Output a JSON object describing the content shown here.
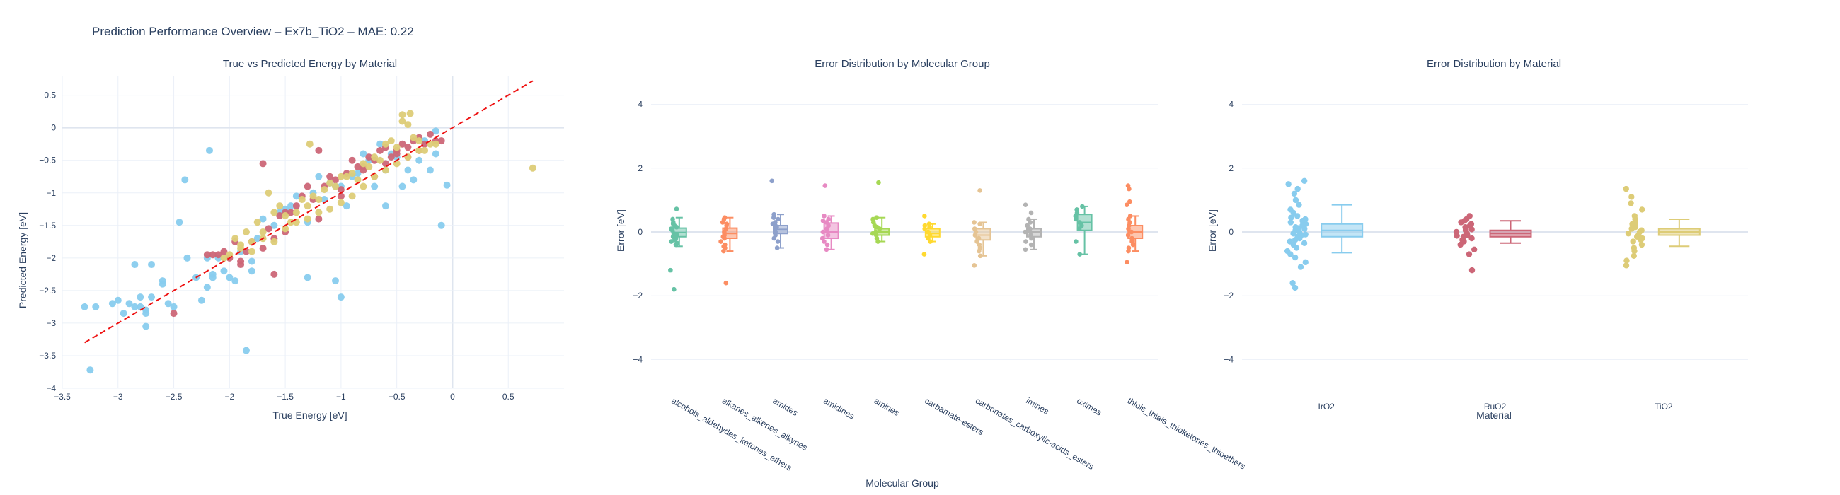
{
  "figure": {
    "title": "Prediction Performance Overview – Ex7b_TiO2 – MAE: 0.22"
  },
  "colors": {
    "IrO2": "#88ccee",
    "RuO2": "#cc6677",
    "TiO2": "#ddcc77",
    "ideal_line": "#ee1111",
    "groups": [
      "#66c2a5",
      "#fc8d62",
      "#8da0cb",
      "#e78ac3",
      "#a6d854",
      "#ffd92f",
      "#e5c494",
      "#b3b3b3",
      "#66c2a5",
      "#fc8d62"
    ]
  },
  "chart_data": [
    {
      "type": "scatter",
      "title": "True vs Predicted Energy by Material",
      "xlabel": "True Energy [eV]",
      "ylabel": "Predicted Energy [eV]",
      "xlim": [
        -3.5,
        1.0
      ],
      "ylim": [
        -4.0,
        0.8
      ],
      "x_ticks": [
        -3.5,
        -3,
        -2.5,
        -2,
        -1.5,
        -1,
        -0.5,
        0,
        0.5
      ],
      "x_tick_labels": [
        "−3.5",
        "−3",
        "−2.5",
        "−2",
        "−1.5",
        "−1",
        "−0.5",
        "0",
        "0.5"
      ],
      "y_ticks": [
        -4,
        -3.5,
        -3,
        -2.5,
        -2,
        -1.5,
        -1,
        -0.5,
        0,
        0.5
      ],
      "y_tick_labels": [
        "−4",
        "−3.5",
        "−3",
        "−2.5",
        "−2",
        "−1.5",
        "−1",
        "−0.5",
        "0",
        "0.5"
      ],
      "grid": true,
      "ideal_line": {
        "x": [
          -3.3,
          0.72
        ],
        "y": [
          -3.3,
          0.72
        ]
      },
      "series": [
        {
          "material": "IrO2",
          "x": [
            -3.3,
            -3.2,
            -3.25,
            -3.05,
            -3.0,
            -2.95,
            -2.9,
            -2.85,
            -2.8,
            -2.8,
            -2.75,
            -2.75,
            -2.7,
            -2.7,
            -2.6,
            -2.55,
            -2.5,
            -2.45,
            -2.4,
            -2.38,
            -2.3,
            -2.25,
            -2.2,
            -2.18,
            -2.15,
            -2.1,
            -2.05,
            -2.0,
            -1.95,
            -1.9,
            -1.85,
            -1.8,
            -1.75,
            -1.7,
            -1.6,
            -1.55,
            -1.5,
            -1.45,
            -1.4,
            -1.3,
            -1.25,
            -1.2,
            -1.15,
            -1.1,
            -1.05,
            -1.0,
            -0.95,
            -0.9,
            -0.85,
            -0.8,
            -0.75,
            -0.7,
            -0.65,
            -0.6,
            -0.55,
            -0.5,
            -0.45,
            -0.4,
            -0.35,
            -0.3,
            -0.25,
            -0.2,
            -0.15,
            -0.1,
            -0.05,
            -2.85,
            -2.75,
            -2.2,
            -1.05,
            -0.15,
            -0.6,
            -1.0,
            -2.6,
            -1.8,
            -2.15,
            -1.3
          ],
          "y": [
            -2.75,
            -2.75,
            -3.72,
            -2.7,
            -2.65,
            -2.85,
            -2.7,
            -2.1,
            -2.75,
            -2.6,
            -3.05,
            -2.8,
            -2.1,
            -2.6,
            -2.35,
            -2.7,
            -2.75,
            -1.45,
            -0.8,
            -2.0,
            -2.3,
            -2.65,
            -2.45,
            -0.35,
            -2.3,
            -2.0,
            -2.2,
            -2.3,
            -2.35,
            -1.9,
            -3.42,
            -2.05,
            -1.7,
            -1.4,
            -1.5,
            -1.3,
            -1.25,
            -1.2,
            -1.05,
            -1.45,
            -1.0,
            -0.75,
            -1.1,
            -0.85,
            -0.9,
            -0.9,
            -1.2,
            -0.75,
            -0.7,
            -0.4,
            -0.5,
            -0.9,
            -0.25,
            -0.65,
            -0.4,
            -0.45,
            -0.9,
            -0.65,
            -0.8,
            -0.5,
            -0.2,
            -0.65,
            -0.4,
            -1.5,
            -0.88,
            -2.75,
            -2.85,
            -2.0,
            -2.35,
            -0.05,
            -1.2,
            -2.6,
            -2.4,
            -2.2,
            -2.25,
            -2.3
          ]
        },
        {
          "material": "RuO2",
          "x": [
            -2.5,
            -2.2,
            -2.15,
            -2.1,
            -2.05,
            -2.0,
            -1.95,
            -1.9,
            -1.85,
            -1.8,
            -1.7,
            -1.65,
            -1.6,
            -1.55,
            -1.5,
            -1.45,
            -1.4,
            -1.35,
            -1.3,
            -1.25,
            -1.2,
            -1.15,
            -1.1,
            -1.05,
            -1.0,
            -0.95,
            -0.9,
            -0.85,
            -0.8,
            -0.75,
            -0.7,
            -0.65,
            -0.6,
            -0.55,
            -0.5,
            -0.45,
            -0.4,
            -0.35,
            -0.3,
            -0.25,
            -0.2,
            -0.15,
            -0.1,
            -1.5,
            -0.8,
            -0.6,
            -0.4,
            -1.9,
            -1.7,
            -1.2,
            -0.5,
            -0.3,
            -1.6,
            -1.0,
            -0.7
          ],
          "y": [
            -2.85,
            -1.95,
            -1.95,
            -1.95,
            -1.9,
            -2.0,
            -1.75,
            -2.05,
            -1.9,
            -1.75,
            -0.55,
            -1.55,
            -2.25,
            -1.35,
            -1.3,
            -1.3,
            -1.2,
            -1.05,
            -0.9,
            -1.1,
            -0.35,
            -0.9,
            -0.75,
            -0.8,
            -0.95,
            -0.7,
            -0.5,
            -0.6,
            -0.6,
            -0.45,
            -0.5,
            -0.35,
            -0.3,
            -0.45,
            -0.35,
            -0.25,
            -0.3,
            -0.2,
            -0.15,
            -0.25,
            -0.1,
            -0.2,
            -0.2,
            -1.6,
            -0.65,
            -0.55,
            -0.45,
            -2.1,
            -1.85,
            -1.4,
            -0.4,
            -0.35,
            -1.7,
            -1.05,
            -0.75
          ]
        },
        {
          "material": "TiO2",
          "x": [
            -2.0,
            -1.95,
            -1.9,
            -1.85,
            -1.8,
            -1.75,
            -1.7,
            -1.65,
            -1.6,
            -1.55,
            -1.5,
            -1.45,
            -1.4,
            -1.35,
            -1.3,
            -1.28,
            -1.25,
            -1.2,
            -1.15,
            -1.1,
            -1.05,
            -1.0,
            -0.95,
            -0.9,
            -0.85,
            -0.8,
            -0.75,
            -0.7,
            -0.65,
            -0.6,
            -0.55,
            -0.5,
            -0.45,
            -0.4,
            -0.35,
            -0.3,
            -0.25,
            -0.2,
            -0.15,
            -1.8,
            -1.6,
            -1.4,
            -1.2,
            -1.0,
            -0.8,
            -0.6,
            -0.4,
            -0.3,
            -0.5,
            -0.7,
            -0.9,
            -1.1,
            -1.3,
            -1.5,
            -1.7,
            -1.9,
            -2.05,
            -0.45,
            -0.38,
            0.72
          ],
          "y": [
            -1.95,
            -1.7,
            -1.8,
            -1.6,
            -1.75,
            -1.45,
            -1.6,
            -1.0,
            -1.3,
            -1.2,
            -1.35,
            -1.45,
            -1.3,
            -1.1,
            -1.2,
            -0.25,
            -1.05,
            -1.1,
            -0.95,
            -0.85,
            -0.9,
            -0.75,
            -0.75,
            -0.7,
            -0.8,
            -0.55,
            -0.6,
            -0.45,
            -0.5,
            -0.25,
            -0.2,
            -0.3,
            0.2,
            0.05,
            -0.15,
            -0.2,
            -0.35,
            -0.25,
            -0.25,
            -1.9,
            -1.75,
            -1.45,
            -1.3,
            -1.15,
            -0.9,
            -0.65,
            -0.45,
            -0.35,
            -0.55,
            -0.75,
            -1.05,
            -1.25,
            -1.4,
            -1.55,
            -1.7,
            -1.85,
            -2.0,
            0.1,
            0.22,
            -0.62
          ]
        }
      ]
    },
    {
      "type": "box",
      "title": "Error Distribution by Molecular Group",
      "xlabel": "Molecular Group",
      "ylabel": "Error [eV]",
      "ylim": [
        -4.9,
        4.9
      ],
      "y_ticks": [
        -4,
        -2,
        0,
        2,
        4
      ],
      "y_tick_labels": [
        "−4",
        "−2",
        "0",
        "2",
        "4"
      ],
      "grid": true,
      "groups": [
        {
          "name": "alcohols_aldehydes_ketones_ethers",
          "q1": -0.15,
          "median": -0.02,
          "q3": 0.12,
          "whisker_low": -0.45,
          "whisker_high": 0.45,
          "points": [
            0.72,
            -1.2,
            -1.8,
            0.4,
            0.3,
            0.2,
            0.1,
            0.05,
            -0.05,
            -0.1,
            -0.2,
            -0.3,
            -0.35,
            -0.4,
            0.25,
            0.15,
            -0.15,
            -0.25
          ]
        },
        {
          "name": "alkanes_alkenes_alkynes",
          "q1": -0.2,
          "median": -0.05,
          "q3": 0.12,
          "whisker_low": -0.6,
          "whisker_high": 0.45,
          "points": [
            -1.6,
            0.45,
            0.4,
            0.3,
            0.2,
            0.1,
            0.0,
            -0.1,
            -0.2,
            -0.3,
            -0.4,
            -0.5,
            -0.6,
            0.25,
            -0.15,
            -0.45
          ]
        },
        {
          "name": "amides",
          "q1": -0.05,
          "median": 0.08,
          "q3": 0.2,
          "whisker_low": -0.5,
          "whisker_high": 0.55,
          "points": [
            1.6,
            0.55,
            0.45,
            0.4,
            0.3,
            0.2,
            0.1,
            0.0,
            -0.1,
            -0.2,
            -0.3,
            -0.5,
            0.25,
            0.15
          ]
        },
        {
          "name": "amidines",
          "q1": -0.2,
          "median": 0.0,
          "q3": 0.28,
          "whisker_low": -0.55,
          "whisker_high": 0.5,
          "points": [
            1.45,
            0.5,
            0.4,
            0.3,
            0.2,
            0.1,
            0.0,
            -0.1,
            -0.2,
            -0.3,
            -0.4,
            -0.55,
            0.35
          ]
        },
        {
          "name": "amines",
          "q1": -0.1,
          "median": 0.0,
          "q3": 0.1,
          "whisker_low": -0.3,
          "whisker_high": 0.45,
          "points": [
            1.55,
            0.45,
            0.4,
            0.3,
            0.2,
            0.1,
            0.0,
            -0.05,
            -0.1,
            -0.2,
            -0.3,
            0.15
          ]
        },
        {
          "name": "carbamate-esters",
          "q1": -0.15,
          "median": -0.05,
          "q3": 0.1,
          "whisker_low": -0.3,
          "whisker_high": 0.25,
          "points": [
            0.5,
            -0.7,
            0.25,
            0.2,
            0.1,
            0.0,
            -0.1,
            -0.2,
            -0.3,
            0.15
          ]
        },
        {
          "name": "carbonates_carboxylic-acids_esters",
          "q1": -0.25,
          "median": -0.1,
          "q3": 0.1,
          "whisker_low": -0.75,
          "whisker_high": 0.3,
          "points": [
            1.3,
            -1.05,
            0.3,
            0.25,
            0.1,
            0.0,
            -0.1,
            -0.2,
            -0.3,
            -0.4,
            -0.5,
            -0.6,
            -0.75
          ]
        },
        {
          "name": "imines",
          "q1": -0.15,
          "median": 0.0,
          "q3": 0.1,
          "whisker_low": -0.55,
          "whisker_high": 0.4,
          "points": [
            0.85,
            0.6,
            0.4,
            0.3,
            0.2,
            0.1,
            0.0,
            -0.1,
            -0.2,
            -0.3,
            -0.4,
            -0.55
          ]
        },
        {
          "name": "oximes",
          "q1": 0.05,
          "median": 0.3,
          "q3": 0.55,
          "whisker_low": -0.7,
          "whisker_high": 0.8,
          "points": [
            0.8,
            0.7,
            0.6,
            0.5,
            0.4,
            0.3,
            0.2,
            0.1,
            -0.3,
            -0.7
          ]
        },
        {
          "name": "thiols_thials_thioketones_thioethers",
          "q1": -0.2,
          "median": 0.0,
          "q3": 0.2,
          "whisker_low": -0.6,
          "whisker_high": 0.5,
          "points": [
            1.45,
            1.35,
            0.95,
            0.85,
            0.5,
            0.4,
            0.3,
            0.2,
            0.1,
            0.0,
            -0.1,
            -0.2,
            -0.3,
            -0.4,
            -0.5,
            -0.6,
            -0.95
          ]
        }
      ]
    },
    {
      "type": "box",
      "title": "Error Distribution by Material",
      "xlabel": "Material",
      "ylabel": "Error [eV]",
      "ylim": [
        -4.9,
        4.9
      ],
      "y_ticks": [
        -4,
        -2,
        0,
        2,
        4
      ],
      "y_tick_labels": [
        "−4",
        "−2",
        "0",
        "2",
        "4"
      ],
      "grid": true,
      "groups": [
        {
          "name": "IrO2",
          "q1": -0.15,
          "median": 0.05,
          "q3": 0.25,
          "whisker_low": -0.65,
          "whisker_high": 0.85,
          "points": [
            1.6,
            1.5,
            1.35,
            1.2,
            1.0,
            0.85,
            0.7,
            0.6,
            0.5,
            0.4,
            0.35,
            0.3,
            0.25,
            0.2,
            0.15,
            0.1,
            0.05,
            0.0,
            -0.05,
            -0.1,
            -0.15,
            -0.2,
            -0.25,
            -0.3,
            -0.4,
            -0.5,
            -0.6,
            -0.7,
            -0.8,
            -0.95,
            -1.1,
            -1.6,
            -1.75,
            0.45,
            0.12,
            -0.08,
            -0.35
          ]
        },
        {
          "name": "RuO2",
          "q1": -0.15,
          "median": -0.05,
          "q3": 0.05,
          "whisker_low": -0.35,
          "whisker_high": 0.35,
          "points": [
            0.5,
            0.4,
            0.35,
            0.3,
            0.25,
            0.2,
            0.15,
            0.1,
            0.05,
            0.0,
            -0.05,
            -0.1,
            -0.15,
            -0.2,
            -0.25,
            -0.3,
            -0.4,
            -0.55,
            -0.7,
            -1.2,
            0.08,
            -0.12
          ]
        },
        {
          "name": "TiO2",
          "q1": -0.1,
          "median": 0.0,
          "q3": 0.1,
          "whisker_low": -0.45,
          "whisker_high": 0.4,
          "points": [
            1.35,
            1.1,
            0.9,
            0.7,
            0.5,
            0.4,
            0.3,
            0.2,
            0.15,
            0.1,
            0.05,
            0.0,
            -0.05,
            -0.1,
            -0.15,
            -0.2,
            -0.3,
            -0.4,
            -0.5,
            -0.6,
            -0.75,
            -0.9,
            -1.05,
            0.25,
            -0.25
          ]
        }
      ]
    }
  ]
}
